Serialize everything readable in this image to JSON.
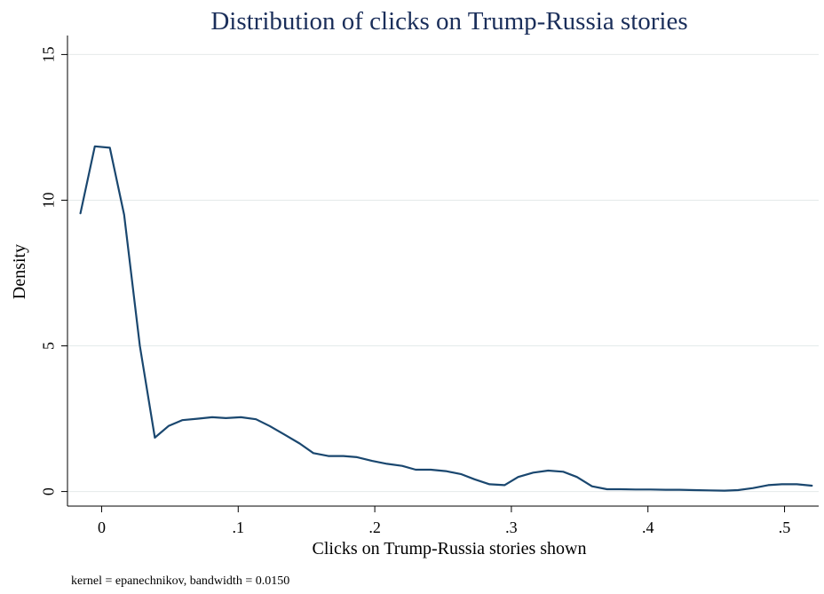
{
  "chart_data": {
    "type": "line",
    "title": "Distribution of clicks on Trump-Russia stories",
    "xlabel": "Clicks on Trump-Russia stories shown",
    "ylabel": "Density",
    "note": "kernel = epanechnikov, bandwidth = 0.0150",
    "xlim": [
      -0.025,
      0.525
    ],
    "ylim": [
      -0.5,
      15.5
    ],
    "x_ticks": [
      0,
      0.1,
      0.2,
      0.3,
      0.4,
      0.5
    ],
    "x_tick_labels": [
      "0",
      ".1",
      ".2",
      ".3",
      ".4",
      ".5"
    ],
    "y_ticks": [
      0,
      5,
      10,
      15
    ],
    "y_tick_labels": [
      "0",
      "5",
      "10",
      "15"
    ],
    "grid": true,
    "line_color": "#1a476f",
    "series": [
      {
        "x": [
          -0.0155,
          -0.005,
          0.006,
          0.0165,
          0.028,
          0.039,
          0.049,
          0.059,
          0.07,
          0.081,
          0.091,
          0.102,
          0.113,
          0.123,
          0.134,
          0.145,
          0.155,
          0.166,
          0.177,
          0.187,
          0.198,
          0.209,
          0.22,
          0.23,
          0.241,
          0.252,
          0.263,
          0.273,
          0.284,
          0.295,
          0.305,
          0.316,
          0.327,
          0.338,
          0.348,
          0.359,
          0.37,
          0.38,
          0.391,
          0.402,
          0.413,
          0.423,
          0.434,
          0.445,
          0.456,
          0.466,
          0.477,
          0.488,
          0.498,
          0.509,
          0.52
        ],
        "y": [
          9.55,
          11.85,
          11.8,
          9.5,
          5.0,
          1.85,
          2.25,
          2.45,
          2.5,
          2.55,
          2.52,
          2.55,
          2.48,
          2.25,
          1.95,
          1.65,
          1.32,
          1.22,
          1.22,
          1.18,
          1.05,
          0.95,
          0.88,
          0.75,
          0.75,
          0.7,
          0.6,
          0.42,
          0.25,
          0.22,
          0.5,
          0.65,
          0.72,
          0.68,
          0.5,
          0.18,
          0.08,
          0.08,
          0.07,
          0.07,
          0.06,
          0.06,
          0.05,
          0.04,
          0.03,
          0.05,
          0.12,
          0.22,
          0.25,
          0.25,
          0.2
        ]
      }
    ]
  }
}
